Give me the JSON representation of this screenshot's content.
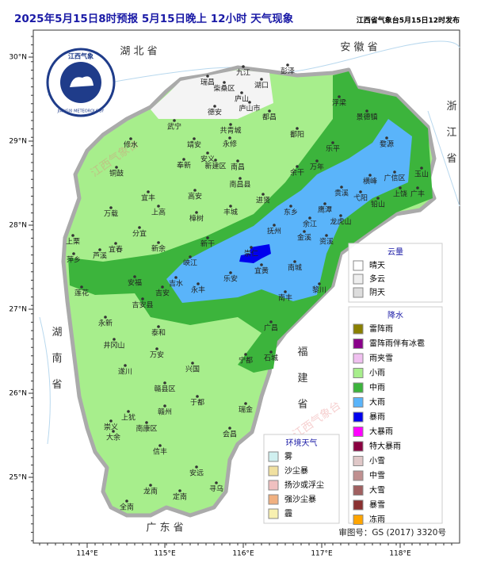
{
  "header": {
    "title": "2025年5月15日8时预报 5月15日晚上 12小时  天气现象",
    "issuer": "江西省气象台5月15日12时发布"
  },
  "axes": {
    "lat": [
      "30°N",
      "29°N",
      "28°N",
      "27°N",
      "26°N",
      "25°N"
    ],
    "lon": [
      "114°E",
      "115°E",
      "116°E",
      "117°E",
      "118°E"
    ]
  },
  "logo": {
    "name": "江西气象",
    "english": "JIANGXI METEOROLOGY"
  },
  "provinces": [
    "湖 北 省",
    "安 徽 省",
    "浙 江 省",
    "湖 南 省",
    "福 建 省",
    "广 东 省"
  ],
  "watermarks": [
    "江西气象台",
    "江西气象台"
  ],
  "cities": [
    "瑞昌",
    "九江",
    "湖口",
    "彭泽",
    "柴桑区",
    "庐山",
    "庐山市",
    "德安",
    "共青城",
    "都昌",
    "永修",
    "武宁",
    "修水",
    "靖安",
    "安义",
    "奉新",
    "新建区",
    "南昌",
    "南昌县",
    "鄱阳",
    "浮梁",
    "景德镇",
    "婺源",
    "乐平",
    "万年",
    "余干",
    "铜鼓",
    "宜丰",
    "高安",
    "上高",
    "万载",
    "进贤",
    "东乡",
    "余江",
    "鹰潭",
    "贵溪",
    "弋阳",
    "横峰",
    "广信区",
    "玉山",
    "上饶",
    "广丰",
    "铅山",
    "龙虎山",
    "金溪",
    "资溪",
    "抚州",
    "丰城",
    "樟树",
    "新干",
    "分宜",
    "新余",
    "宜春",
    "芦溪",
    "萍乡",
    "上栗",
    "峡江",
    "崇仁",
    "宜黄",
    "南城",
    "黎川",
    "南丰",
    "乐安",
    "永丰",
    "吉水",
    "安福",
    "莲花",
    "吉安",
    "吉安县",
    "泰和",
    "永新",
    "井冈山",
    "万安",
    "遂川",
    "兴国",
    "宁都",
    "石城",
    "广昌",
    "赣县区",
    "赣州",
    "于都",
    "瑞金",
    "会昌",
    "上犹",
    "崇义",
    "南康区",
    "大余",
    "信丰",
    "安远",
    "寻乌",
    "龙南",
    "全南",
    "定南"
  ],
  "cloud_legend": {
    "title": "云量",
    "items": [
      "晴天",
      "多云",
      "阴天"
    ]
  },
  "precip_legend": {
    "title": "降水",
    "items": [
      "雷阵雨",
      "雷阵雨伴有冰雹",
      "雨夹雪",
      "小雨",
      "中雨",
      "大雨",
      "暴雨",
      "大暴雨",
      "特大暴雨",
      "小雪",
      "中雪",
      "大雪",
      "暴雪",
      "冻雨"
    ]
  },
  "env_legend": {
    "title": "环境天气",
    "items": [
      "雾",
      "沙尘暴",
      "扬沙或浮尘",
      "强沙尘暴",
      "霾"
    ]
  },
  "footer": {
    "approval": "审图号：GS (2017) 3320号"
  }
}
